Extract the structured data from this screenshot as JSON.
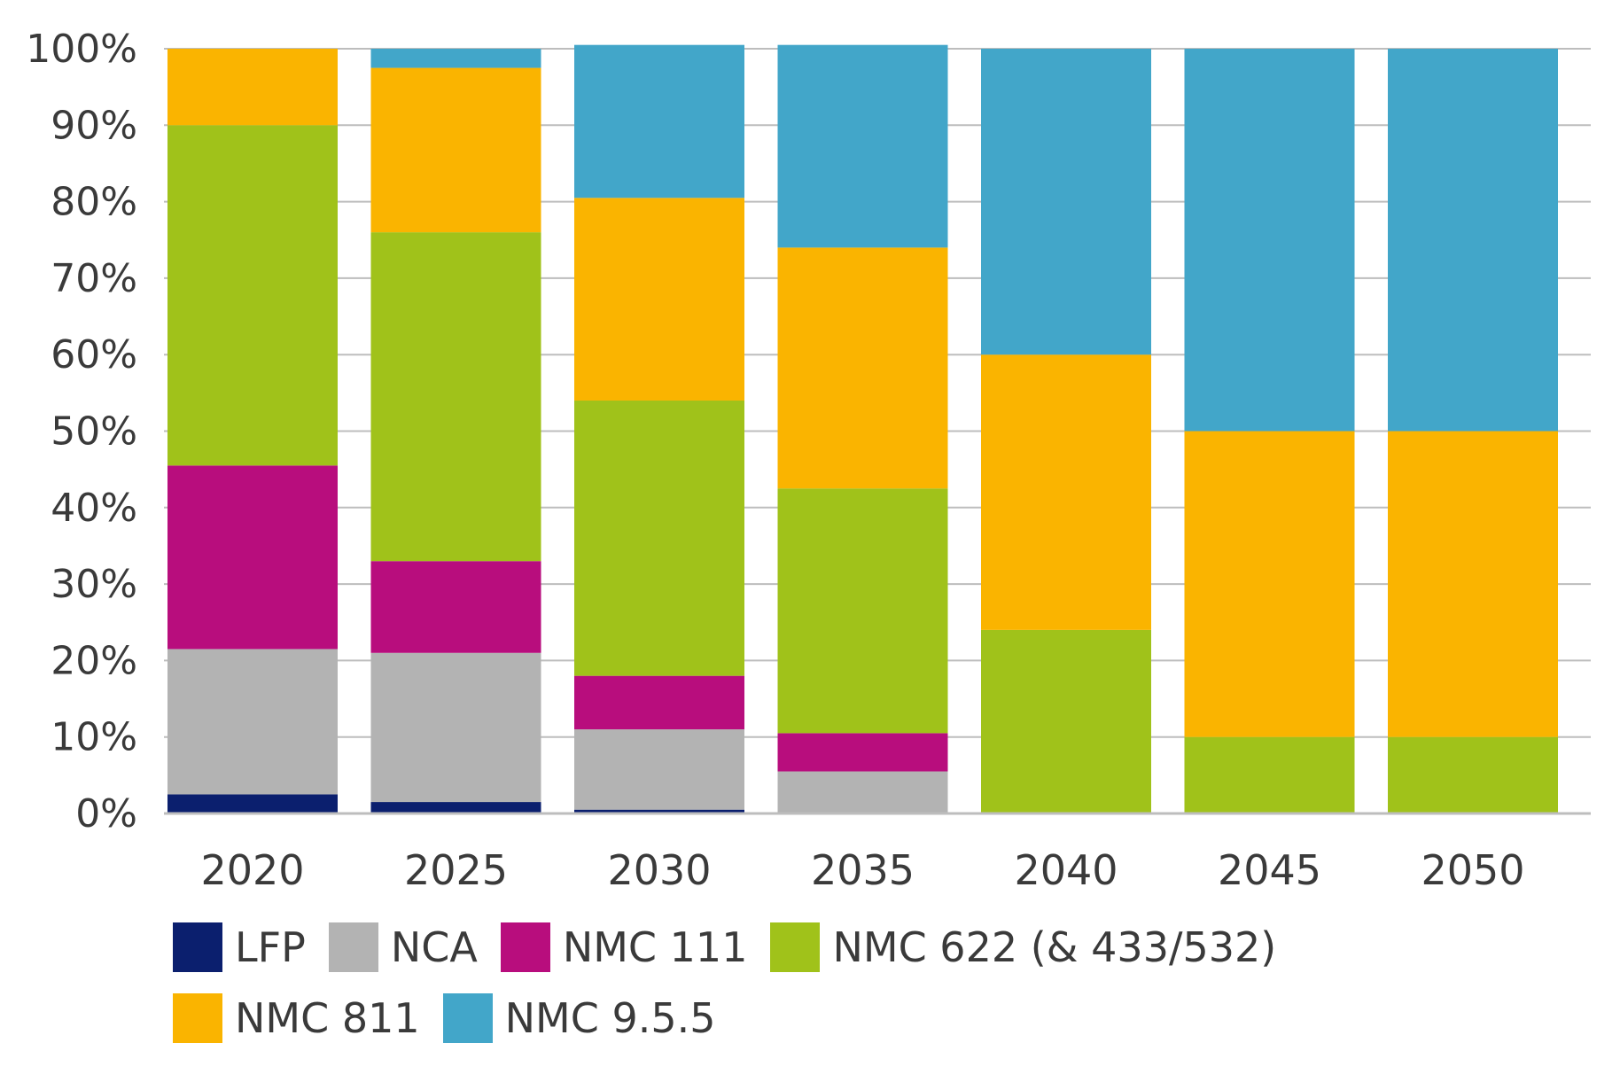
{
  "chart_data": {
    "type": "bar",
    "stacked": true,
    "title": "",
    "xlabel": "",
    "ylabel": "",
    "ylim": [
      0,
      100
    ],
    "y_ticks": [
      "0%",
      "10%",
      "20%",
      "30%",
      "40%",
      "50%",
      "60%",
      "70%",
      "80%",
      "90%",
      "100%"
    ],
    "grid": "horizontal",
    "legend_position": "bottom",
    "categories": [
      "2020",
      "2025",
      "2030",
      "2035",
      "2040",
      "2045",
      "2050"
    ],
    "series": [
      {
        "name": "LFP",
        "color": "#0b1f6e",
        "values": [
          2.5,
          1.5,
          0.5,
          0,
          0,
          0,
          0
        ]
      },
      {
        "name": "NCA",
        "color": "#b3b3b3",
        "values": [
          19,
          19.5,
          10.5,
          5.5,
          0,
          0,
          0
        ]
      },
      {
        "name": "NMC 111",
        "color": "#b80d7d",
        "values": [
          24,
          12,
          7,
          5,
          0,
          0,
          0
        ]
      },
      {
        "name": "NMC 622 (& 433/532)",
        "color": "#a0c21a",
        "values": [
          44.5,
          43,
          36,
          32,
          24,
          10,
          10
        ]
      },
      {
        "name": "NMC 811",
        "color": "#fab400",
        "values": [
          10,
          21.5,
          26.5,
          31.5,
          36,
          40,
          40
        ]
      },
      {
        "name": "NMC 9.5.5",
        "color": "#42a6c9",
        "values": [
          0,
          2.5,
          20,
          26.5,
          40,
          50,
          50
        ]
      }
    ]
  }
}
